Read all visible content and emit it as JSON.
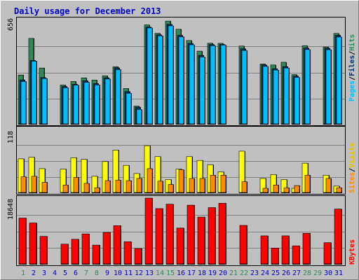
{
  "title": "Daily usage for December 2013",
  "colors": {
    "background": "#c0c0c0",
    "title_text": "#0000cc",
    "hits": "#2e8b57",
    "files": "#003366",
    "pages": "#00bfff",
    "visits": "#ffff00",
    "sites": "#ff8c00",
    "kbytes": "#ff0000",
    "weekend_day": "#2e8b57",
    "weekday": "#0000cc"
  },
  "chart_data": [
    {
      "type": "bar",
      "panel": "top",
      "ymax_label": "656",
      "ymax": 656,
      "legend": [
        "Pages",
        "/",
        "Files",
        "/",
        "Hits"
      ],
      "categories": [
        "1",
        "2",
        "3",
        "4",
        "5",
        "6",
        "7",
        "8",
        "9",
        "10",
        "11",
        "12",
        "13",
        "14",
        "15",
        "16",
        "17",
        "18",
        "19",
        "20",
        "21",
        "22",
        "23",
        "24",
        "25",
        "26",
        "27",
        "28",
        "29",
        "30",
        "31"
      ],
      "series": [
        {
          "name": "Hits",
          "values": [
            312,
            542,
            356,
            0,
            249,
            271,
            294,
            280,
            307,
            364,
            227,
            116,
            627,
            574,
            651,
            600,
            529,
            462,
            512,
            511,
            0,
            494,
            0,
            381,
            375,
            392,
            314,
            496,
            0,
            488,
            573
          ]
        },
        {
          "name": "Files",
          "values": [
            281,
            404,
            296,
            0,
            240,
            254,
            276,
            258,
            295,
            357,
            208,
            110,
            614,
            565,
            631,
            562,
            511,
            436,
            504,
            505,
            0,
            477,
            0,
            375,
            352,
            365,
            306,
            482,
            0,
            481,
            562
          ]
        },
        {
          "name": "Pages",
          "values": [
            271,
            399,
            290,
            0,
            232,
            248,
            266,
            250,
            287,
            346,
            197,
            95,
            608,
            558,
            621,
            552,
            502,
            425,
            496,
            500,
            0,
            466,
            0,
            366,
            343,
            356,
            297,
            472,
            0,
            471,
            551
          ]
        }
      ]
    },
    {
      "type": "bar",
      "panel": "middle",
      "ymax_label": "118",
      "ymax": 118,
      "legend": [
        "Sites",
        "/",
        "Visits"
      ],
      "categories": [
        "1",
        "2",
        "3",
        "4",
        "5",
        "6",
        "7",
        "8",
        "9",
        "10",
        "11",
        "12",
        "13",
        "14",
        "15",
        "16",
        "17",
        "18",
        "19",
        "20",
        "21",
        "22",
        "23",
        "24",
        "25",
        "26",
        "27",
        "28",
        "29",
        "30",
        "31"
      ],
      "series": [
        {
          "name": "Visits",
          "values": [
            63,
            66,
            45,
            0,
            44,
            65,
            62,
            31,
            58,
            79,
            51,
            36,
            87,
            67,
            25,
            44,
            67,
            60,
            52,
            39,
            0,
            77,
            0,
            27,
            34,
            25,
            9,
            55,
            0,
            33,
            13
          ]
        },
        {
          "name": "Sites",
          "values": [
            30,
            31,
            20,
            0,
            15,
            29,
            18,
            10,
            23,
            24,
            23,
            27,
            45,
            22,
            16,
            43,
            27,
            27,
            33,
            33,
            0,
            21,
            0,
            9,
            15,
            10,
            14,
            33,
            0,
            27,
            10
          ]
        }
      ]
    },
    {
      "type": "bar",
      "panel": "bottom",
      "ymax_label": "18648",
      "ymax": 18648,
      "legend": [
        "KBytes"
      ],
      "categories": [
        "1",
        "2",
        "3",
        "4",
        "5",
        "6",
        "7",
        "8",
        "9",
        "10",
        "11",
        "12",
        "13",
        "14",
        "15",
        "16",
        "17",
        "18",
        "19",
        "20",
        "21",
        "22",
        "23",
        "24",
        "25",
        "26",
        "27",
        "28",
        "29",
        "30",
        "31"
      ],
      "series": [
        {
          "name": "KBytes",
          "values": [
            13051,
            11675,
            7920,
            0,
            5740,
            7106,
            8608,
            5467,
            9024,
            10929,
            6420,
            4507,
            18648,
            15710,
            16939,
            10246,
            16666,
            13324,
            15990,
            17212,
            0,
            10997,
            0,
            8057,
            4642,
            8057,
            5262,
            8779,
            0,
            6147,
            15574
          ]
        }
      ]
    }
  ],
  "x_axis_days": [
    "1",
    "2",
    "3",
    "4",
    "5",
    "6",
    "7",
    "8",
    "9",
    "10",
    "11",
    "12",
    "13",
    "14",
    "15",
    "16",
    "17",
    "18",
    "19",
    "20",
    "21",
    "22",
    "23",
    "24",
    "25",
    "26",
    "27",
    "28",
    "29",
    "30",
    "31"
  ]
}
